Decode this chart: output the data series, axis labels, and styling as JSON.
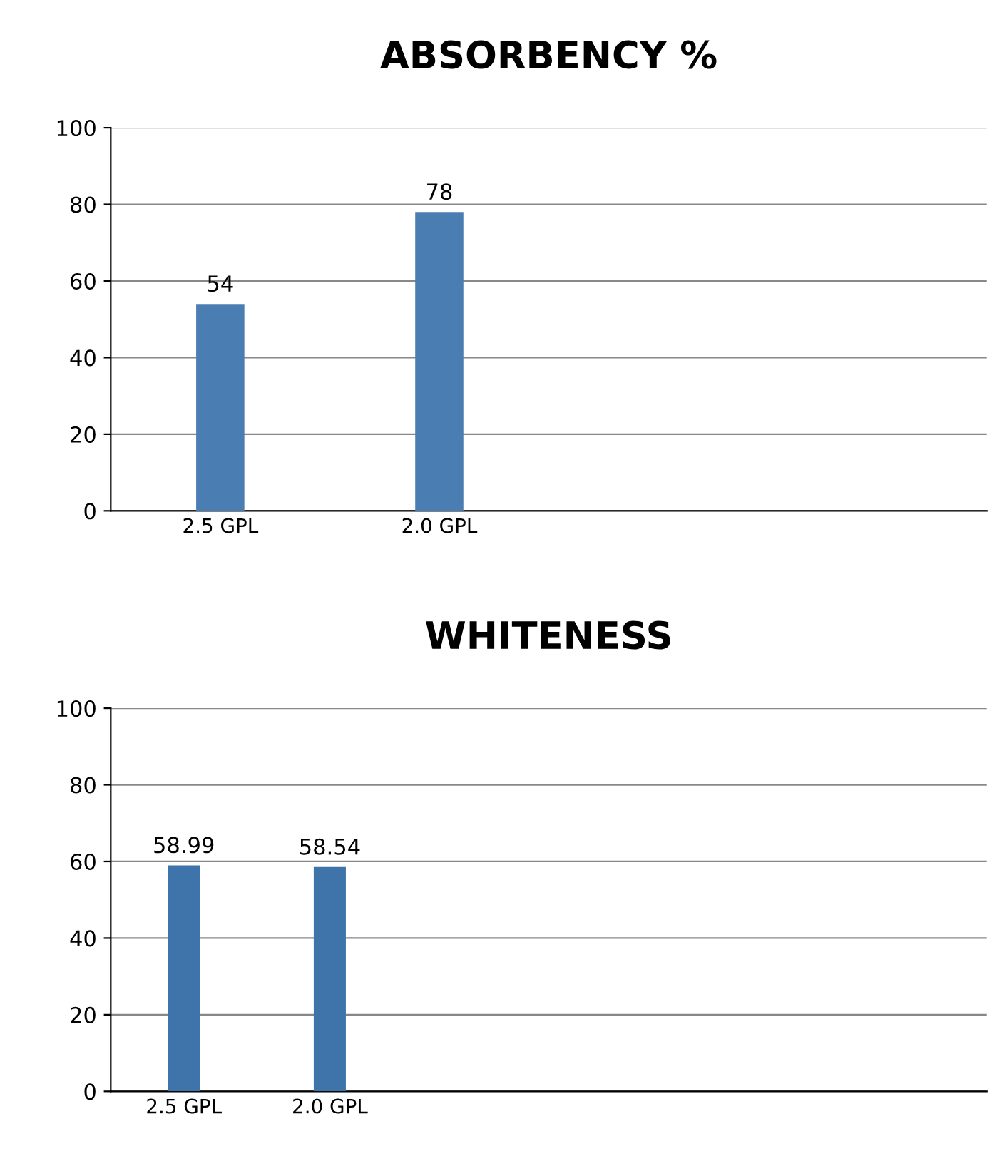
{
  "chart_data": [
    {
      "type": "bar",
      "title": "ABSORBENCY %",
      "categories": [
        "2.5 GPL",
        "2.0 GPL",
        null,
        null
      ],
      "values": [
        54,
        78,
        null,
        null
      ],
      "color": "#4a7eb3",
      "ylim": [
        0,
        100
      ],
      "yticks": [
        0,
        20,
        40,
        60,
        80,
        100
      ],
      "grid": "y",
      "data_labels": true
    },
    {
      "type": "bar",
      "title": "WHITENESS",
      "categories": [
        "2.5 GPL",
        "2.0 GPL",
        null,
        null,
        null,
        null
      ],
      "values": [
        58.99,
        58.54,
        null,
        null,
        null,
        null
      ],
      "color": "#3f74aa",
      "ylim": [
        0,
        100
      ],
      "yticks": [
        0,
        20,
        40,
        60,
        80,
        100
      ],
      "grid": "y",
      "data_labels": true
    }
  ]
}
